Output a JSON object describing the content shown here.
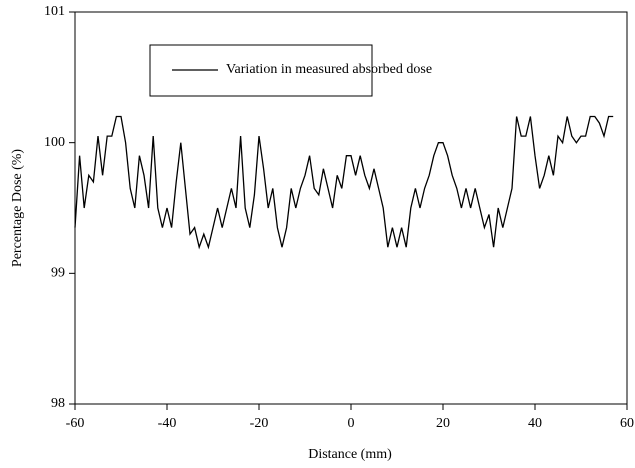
{
  "chart_data": {
    "type": "line",
    "xlabel": "Distance (mm)",
    "ylabel": "Percentage Dose (%)",
    "xlim": [
      -60,
      60
    ],
    "xticks": [
      -60,
      -40,
      -20,
      0,
      20,
      40,
      60
    ],
    "ylim": [
      98,
      101
    ],
    "yticks": [
      98,
      99,
      100,
      101
    ],
    "legend": "top-left",
    "x": [
      -60,
      -59,
      -58,
      -57,
      -56,
      -55,
      -54,
      -53,
      -52,
      -51,
      -50,
      -49,
      -48,
      -47,
      -46,
      -45,
      -44,
      -43,
      -42,
      -41,
      -40,
      -39,
      -38,
      -37,
      -36,
      -35,
      -34,
      -33,
      -32,
      -31,
      -30,
      -29,
      -28,
      -27,
      -26,
      -25,
      -24,
      -23,
      -22,
      -21,
      -20,
      -19,
      -18,
      -17,
      -16,
      -15,
      -14,
      -13,
      -12,
      -11,
      -10,
      -9,
      -8,
      -7,
      -6,
      -5,
      -4,
      -3,
      -2,
      -1,
      0,
      1,
      2,
      3,
      4,
      5,
      6,
      7,
      8,
      9,
      10,
      11,
      12,
      13,
      14,
      15,
      16,
      17,
      18,
      19,
      20,
      21,
      22,
      23,
      24,
      25,
      26,
      27,
      28,
      29,
      30,
      31,
      32,
      33,
      34,
      35,
      36,
      37,
      38,
      39,
      40,
      41,
      42,
      43,
      44,
      45,
      46,
      47,
      48,
      49,
      50,
      51,
      52,
      53,
      54,
      55,
      56,
      57
    ],
    "series": [
      {
        "name": "Variation in measured absorbed dose",
        "color": "#000000",
        "values": [
          99.35,
          99.9,
          99.5,
          99.75,
          99.7,
          100.05,
          99.75,
          100.05,
          100.05,
          100.2,
          100.2,
          100.0,
          99.65,
          99.5,
          99.9,
          99.75,
          99.5,
          100.05,
          99.5,
          99.35,
          99.5,
          99.35,
          99.7,
          100.0,
          99.65,
          99.3,
          99.35,
          99.2,
          99.3,
          99.2,
          99.35,
          99.5,
          99.35,
          99.5,
          99.65,
          99.5,
          100.05,
          99.5,
          99.35,
          99.6,
          100.05,
          99.8,
          99.5,
          99.65,
          99.35,
          99.2,
          99.35,
          99.65,
          99.5,
          99.65,
          99.75,
          99.9,
          99.65,
          99.6,
          99.8,
          99.65,
          99.5,
          99.75,
          99.65,
          99.9,
          99.9,
          99.75,
          99.9,
          99.75,
          99.65,
          99.8,
          99.65,
          99.5,
          99.2,
          99.35,
          99.2,
          99.35,
          99.2,
          99.5,
          99.65,
          99.5,
          99.65,
          99.75,
          99.9,
          100.0,
          100.0,
          99.9,
          99.75,
          99.65,
          99.5,
          99.65,
          99.5,
          99.65,
          99.5,
          99.35,
          99.45,
          99.2,
          99.5,
          99.35,
          99.5,
          99.65,
          100.2,
          100.05,
          100.05,
          100.2,
          99.9,
          99.65,
          99.75,
          99.9,
          99.75,
          100.05,
          100.0,
          100.2,
          100.05,
          100.0,
          100.05,
          100.05,
          100.2,
          100.2,
          100.15,
          100.05,
          100.2,
          100.2
        ]
      }
    ]
  }
}
